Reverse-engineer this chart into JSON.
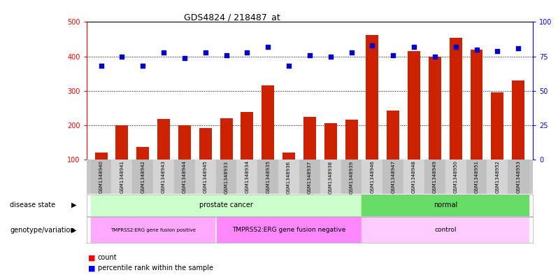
{
  "title": "GDS4824 / 218487_at",
  "samples": [
    "GSM1348940",
    "GSM1348941",
    "GSM1348942",
    "GSM1348943",
    "GSM1348944",
    "GSM1348945",
    "GSM1348933",
    "GSM1348934",
    "GSM1348935",
    "GSM1348936",
    "GSM1348937",
    "GSM1348938",
    "GSM1348939",
    "GSM1348946",
    "GSM1348947",
    "GSM1348948",
    "GSM1348949",
    "GSM1348950",
    "GSM1348951",
    "GSM1348952",
    "GSM1348953"
  ],
  "counts": [
    120,
    200,
    137,
    218,
    200,
    192,
    220,
    238,
    315,
    120,
    225,
    205,
    215,
    463,
    242,
    415,
    400,
    455,
    420,
    295,
    330
  ],
  "percentiles": [
    68,
    75,
    68,
    78,
    74,
    78,
    76,
    78,
    82,
    68,
    76,
    75,
    78,
    83,
    76,
    82,
    75,
    82,
    80,
    79,
    81
  ],
  "disease_state_groups": [
    {
      "label": "prostate cancer",
      "start": 0,
      "end": 12,
      "color": "#ccffcc"
    },
    {
      "label": "normal",
      "start": 13,
      "end": 20,
      "color": "#66dd66"
    }
  ],
  "genotype_groups": [
    {
      "label": "TMPRSS2:ERG gene fusion positive",
      "start": 0,
      "end": 5,
      "color": "#ffaaff"
    },
    {
      "label": "TMPRSS2:ERG gene fusion negative",
      "start": 6,
      "end": 12,
      "color": "#ff88ff"
    },
    {
      "label": "control",
      "start": 13,
      "end": 20,
      "color": "#ffccff"
    }
  ],
  "bar_color": "#cc2200",
  "dot_color": "#0000cc",
  "ylim_left": [
    100,
    500
  ],
  "ylim_right": [
    0,
    100
  ],
  "yticks_left": [
    100,
    200,
    300,
    400,
    500
  ],
  "yticks_right": [
    0,
    25,
    50,
    75,
    100
  ],
  "bar_width": 0.6
}
